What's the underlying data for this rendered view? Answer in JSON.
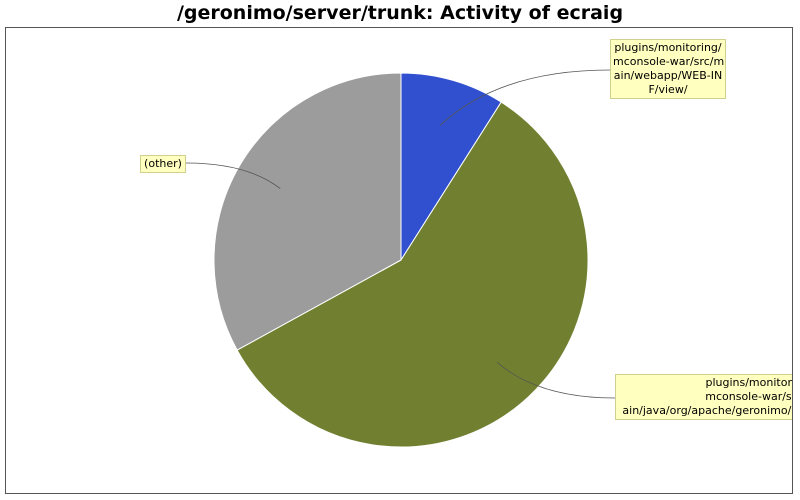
{
  "chart_data": {
    "type": "pie",
    "title": "/geronimo/server/trunk: Activity of ecraig",
    "slices": [
      {
        "label_lines": [
          "plugins/monitoring/",
          "mconsole-war/src/m",
          "ain/webapp/WEB-IN",
          "F/view/"
        ],
        "value": 9,
        "color": "#3050d0"
      },
      {
        "label_lines": [
          "plugins/monitorin",
          "mconsole-war/src",
          "ain/java/org/apache/geronimo/m"
        ],
        "value": 58,
        "color": "#708030"
      },
      {
        "label_lines": [
          "(other)"
        ],
        "value": 33,
        "color": "#9c9c9c"
      }
    ],
    "legend": "none"
  }
}
